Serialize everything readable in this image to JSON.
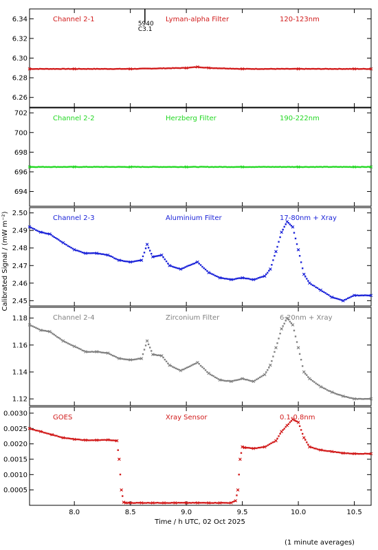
{
  "chart_data": {
    "type": "scatter",
    "ylabel": "Calibrated Signal / (mW m⁻²)",
    "xlabel": "Time / h UTC, 02 Oct 2025",
    "footnote": "(1 minute averages)",
    "xlim": [
      7.6,
      10.65
    ],
    "x_ticks": [
      "8.0",
      "8.5",
      "9.0",
      "9.5",
      "10.0",
      "10.5"
    ],
    "flare_marker": {
      "time": 8.63,
      "label_top": "5940",
      "label_bottom": "C3.1"
    },
    "panels": [
      {
        "name": "Channel 2-1",
        "filter": "Lyman-alpha Filter",
        "band": "120-123nm",
        "color": "#d11a1a",
        "ylim": [
          6.25,
          6.35
        ],
        "y_ticks": [
          "6.26",
          "6.28",
          "6.30",
          "6.32",
          "6.34"
        ],
        "series": [
          {
            "x": [
              7.6,
              8.0,
              8.5,
              9.0,
              9.1,
              9.2,
              9.5,
              10.0,
              10.5,
              10.65
            ],
            "y": [
              6.289,
              6.289,
              6.289,
              6.29,
              6.291,
              6.29,
              6.289,
              6.289,
              6.289,
              6.289
            ]
          }
        ]
      },
      {
        "name": "Channel 2-2",
        "filter": "Herzberg Filter",
        "band": "190-222nm",
        "color": "#22d822",
        "ylim": [
          692.5,
          702.5
        ],
        "y_ticks": [
          "694",
          "696",
          "698",
          "700",
          "702"
        ],
        "series": [
          {
            "x": [
              7.6,
              8.0,
              8.5,
              9.0,
              9.5,
              10.0,
              10.5,
              10.65
            ],
            "y": [
              696.5,
              696.5,
              696.5,
              696.5,
              696.5,
              696.5,
              696.5,
              696.5
            ]
          }
        ]
      },
      {
        "name": "Channel 2-3",
        "filter": "Aluminium Filter",
        "band": "17-80nm + Xray",
        "color": "#1a22d8",
        "ylim": [
          2.447,
          2.503
        ],
        "y_ticks": [
          "2.45",
          "2.46",
          "2.47",
          "2.48",
          "2.49",
          "2.50"
        ],
        "series": [
          {
            "x": [
              7.6,
              7.7,
              7.78,
              7.9,
              8.0,
              8.1,
              8.2,
              8.3,
              8.4,
              8.5,
              8.6,
              8.65,
              8.7,
              8.78,
              8.85,
              8.95,
              9.1,
              9.2,
              9.3,
              9.4,
              9.5,
              9.6,
              9.7,
              9.75,
              9.8,
              9.85,
              9.9,
              9.95,
              10.0,
              10.05,
              10.1,
              10.2,
              10.3,
              10.4,
              10.5,
              10.65
            ],
            "y": [
              2.492,
              2.489,
              2.488,
              2.483,
              2.479,
              2.477,
              2.477,
              2.476,
              2.473,
              2.472,
              2.473,
              2.482,
              2.475,
              2.476,
              2.47,
              2.468,
              2.472,
              2.466,
              2.463,
              2.462,
              2.463,
              2.462,
              2.464,
              2.468,
              2.478,
              2.489,
              2.495,
              2.492,
              2.479,
              2.465,
              2.46,
              2.456,
              2.452,
              2.45,
              2.453,
              2.453
            ]
          }
        ]
      },
      {
        "name": "Channel 2-4",
        "filter": "Zirconium Filter",
        "band": "6-20nm + Xray",
        "color": "#808080",
        "ylim": [
          1.115,
          1.188
        ],
        "y_ticks": [
          "1.12",
          "1.14",
          "1.16",
          "1.18"
        ],
        "series": [
          {
            "x": [
              7.6,
              7.7,
              7.78,
              7.9,
              8.0,
              8.1,
              8.2,
              8.3,
              8.4,
              8.5,
              8.6,
              8.65,
              8.7,
              8.78,
              8.85,
              8.95,
              9.1,
              9.2,
              9.3,
              9.4,
              9.5,
              9.6,
              9.7,
              9.75,
              9.8,
              9.85,
              9.9,
              9.95,
              10.0,
              10.05,
              10.1,
              10.2,
              10.3,
              10.4,
              10.5,
              10.65
            ],
            "y": [
              1.175,
              1.171,
              1.17,
              1.163,
              1.159,
              1.155,
              1.155,
              1.154,
              1.15,
              1.149,
              1.15,
              1.163,
              1.153,
              1.152,
              1.145,
              1.141,
              1.147,
              1.139,
              1.134,
              1.133,
              1.135,
              1.133,
              1.138,
              1.145,
              1.158,
              1.172,
              1.18,
              1.175,
              1.158,
              1.14,
              1.135,
              1.129,
              1.125,
              1.122,
              1.12,
              1.12
            ]
          }
        ]
      },
      {
        "name": "GOES",
        "filter": "Xray Sensor",
        "band": "0.1-0.8nm",
        "color": "#d11a1a",
        "ylim": [
          0.0,
          0.0032
        ],
        "y_ticks": [
          "0.0005",
          "0.0010",
          "0.0015",
          "0.0020",
          "0.0025",
          "0.0030"
        ],
        "series": [
          {
            "x": [
              7.6,
              7.7,
              7.8,
              7.9,
              8.0,
              8.1,
              8.2,
              8.3,
              8.38,
              8.4,
              8.42,
              8.44,
              8.46,
              8.5,
              8.6,
              8.7,
              8.8,
              8.9,
              9.0,
              9.1,
              9.2,
              9.3,
              9.4,
              9.44,
              9.46,
              9.48,
              9.5,
              9.52,
              9.6,
              9.7,
              9.8,
              9.85,
              9.9,
              9.95,
              10.0,
              10.05,
              10.1,
              10.2,
              10.3,
              10.4,
              10.5,
              10.65
            ],
            "y": [
              0.0025,
              0.0024,
              0.0023,
              0.0022,
              0.00215,
              0.00212,
              0.00212,
              0.00213,
              0.0021,
              0.0015,
              0.0005,
              0.0001,
              8e-05,
              8e-05,
              8e-05,
              8e-05,
              8e-05,
              8e-05,
              8e-05,
              8e-05,
              8e-05,
              8e-05,
              8e-05,
              0.00015,
              0.0005,
              0.0015,
              0.0019,
              0.00188,
              0.00185,
              0.0019,
              0.0021,
              0.0024,
              0.0026,
              0.0028,
              0.0027,
              0.0022,
              0.0019,
              0.0018,
              0.00175,
              0.0017,
              0.00168,
              0.00168
            ]
          }
        ]
      }
    ]
  }
}
